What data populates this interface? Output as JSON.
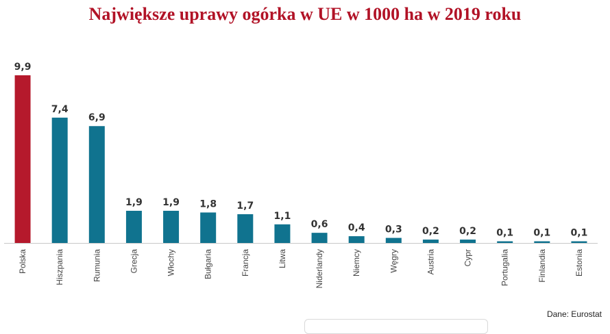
{
  "chart_data": {
    "type": "bar",
    "title": "Największe uprawy ogórka w UE w 1000 ha w 2019 roku",
    "categories": [
      "Polska",
      "Hiszpania",
      "Rumunia",
      "Grecja",
      "Włochy",
      "Bułgaria",
      "Francja",
      "Litwa",
      "Niderlandy",
      "Niemcy",
      "Węgry",
      "Austria",
      "Cypr",
      "Portugalia",
      "Finlandia",
      "Estonia"
    ],
    "values": [
      9.9,
      7.4,
      6.9,
      1.9,
      1.9,
      1.8,
      1.7,
      1.1,
      0.6,
      0.4,
      0.3,
      0.2,
      0.2,
      0.1,
      0.1,
      0.1
    ],
    "value_labels": [
      "9,9",
      "7,4",
      "6,9",
      "1,9",
      "1,9",
      "1,8",
      "1,7",
      "1,1",
      "0,6",
      "0,4",
      "0,3",
      "0,2",
      "0,2",
      "0,1",
      "0,1",
      "0,1"
    ],
    "highlight_index": 0,
    "colors": {
      "highlight": "#b5192c",
      "default": "#10738f"
    },
    "ylim": [
      0,
      9.9
    ],
    "grid": false,
    "legend": "none",
    "source": "Dane: Eurostat"
  }
}
